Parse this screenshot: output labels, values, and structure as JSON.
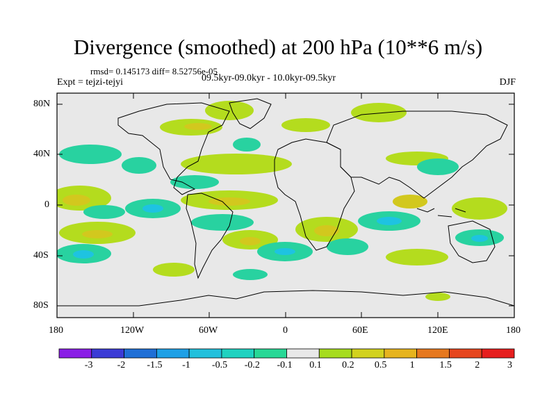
{
  "title": "Divergence (smoothed) at 200 hPa (10**6 m/s)",
  "stats": "rmsd= 0.145173 diff= 8.52756e-05",
  "expt": "Expt = tejzi-tejyi",
  "period": "09.5kyr-09.0kyr - 10.0kyr-09.5kyr",
  "season": "DJF",
  "y_ticks": [
    "80N",
    "40N",
    "0",
    "40S",
    "80S"
  ],
  "x_ticks": [
    "180",
    "120W",
    "60W",
    "0",
    "60E",
    "120E",
    "180"
  ],
  "colorbar": {
    "labels": [
      "-3",
      "-2",
      "-1.5",
      "-1",
      "-0.5",
      "-0.2",
      "-0.1",
      "0.1",
      "0.2",
      "0.5",
      "1",
      "1.5",
      "2",
      "3"
    ],
    "colors": [
      "#8a1ee6",
      "#3b3bd6",
      "#1f6fd6",
      "#1ea0e6",
      "#22c0dc",
      "#1fd2c0",
      "#28d896",
      "#e8e8e8",
      "#a6dc1e",
      "#d2d21e",
      "#e6b41e",
      "#e6781e",
      "#e6461e",
      "#e61e1e"
    ]
  },
  "anomaly_colors": {
    "pos_small": "#b4dc1e",
    "pos_mid": "#d2c81e",
    "neg_small": "#28d2a0",
    "neg_mid": "#1ec3e1",
    "background": "#e8e8e8"
  }
}
